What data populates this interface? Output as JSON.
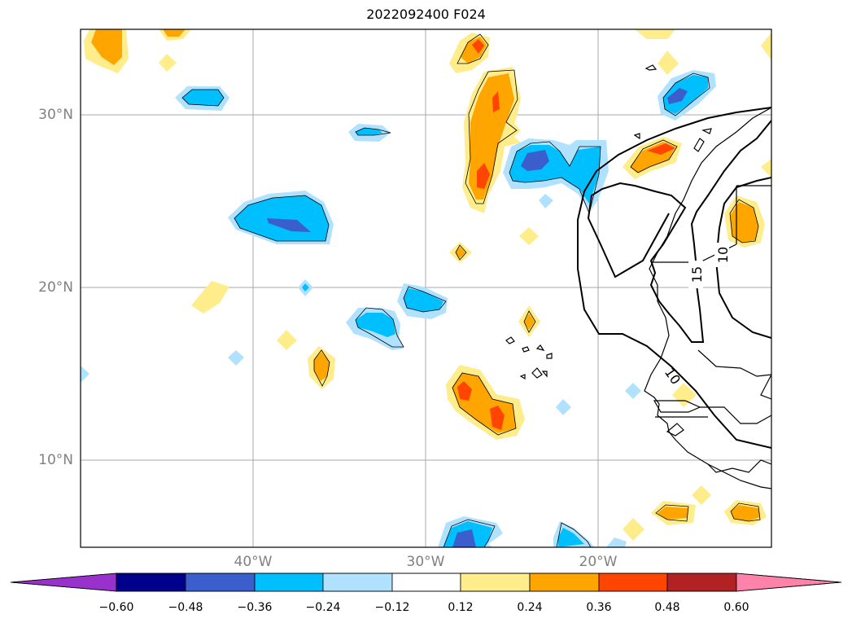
{
  "title": "2022092400 F024",
  "lat_labels": [
    "30°N",
    "20°N",
    "10°N"
  ],
  "lon_labels": [
    "40°W",
    "30°W",
    "20°W"
  ],
  "contour_labels": [
    "15",
    "10",
    "10"
  ],
  "colorbar": {
    "ticks": [
      "−0.60",
      "−0.48",
      "−0.36",
      "−0.24",
      "−0.12",
      "0.12",
      "0.24",
      "0.36",
      "0.48",
      "0.60"
    ],
    "colors": {
      "under": "#9932cc",
      "b1": "#00008b",
      "b2": "#3a5fcd",
      "b3": "#00bfff",
      "b4": "#b0e2ff",
      "b5": "#ffffff",
      "b6": "#ffec8b",
      "b7": "#ffa500",
      "b8": "#ff4500",
      "b9": "#b22222",
      "over": "#ff82ab"
    }
  }
}
